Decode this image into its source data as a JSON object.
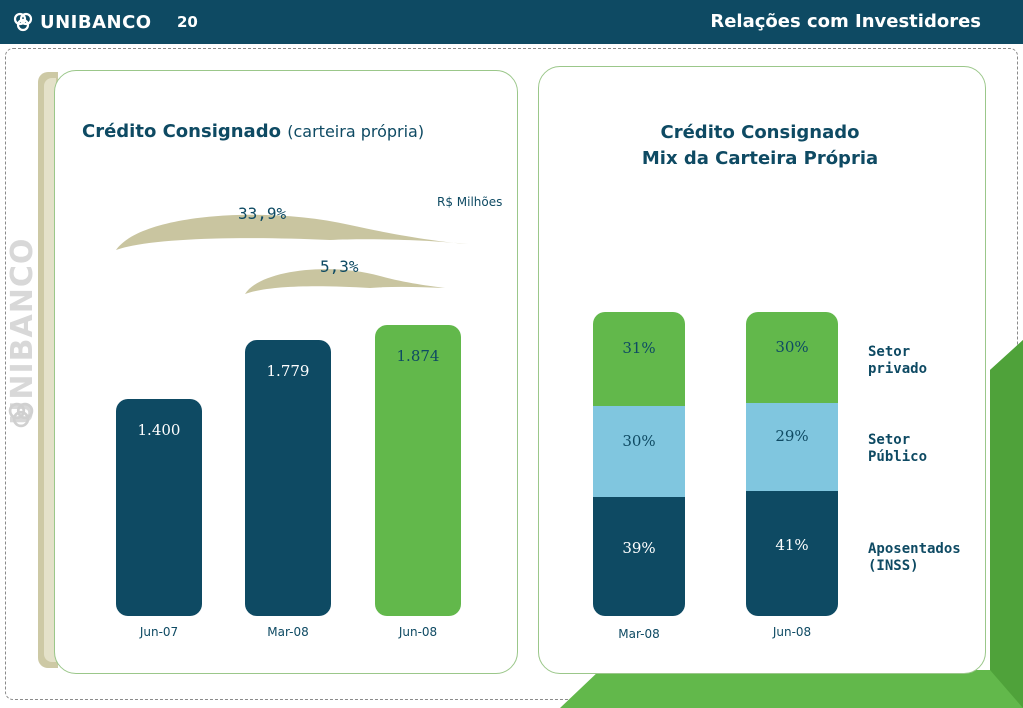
{
  "header": {
    "brand": "UNIBANCO",
    "page_number": "20",
    "title": "Relações com Investidores"
  },
  "watermark": {
    "text": "UNIBANCO"
  },
  "left_panel": {
    "title": "Crédito Consignado",
    "subtitle": "(carteira própria)",
    "units": "R$ Milhões",
    "growth": [
      {
        "label": "33,9%",
        "from": "Jun-07",
        "to": "Jun-08"
      },
      {
        "label": "5,3%",
        "from": "Mar-08",
        "to": "Jun-08"
      }
    ]
  },
  "right_panel": {
    "title_line1": "Crédito Consignado",
    "title_line2": "Mix da Carteira Própria"
  },
  "colors": {
    "navy": "#0e4a63",
    "green": "#62b84b",
    "light_blue": "#80c6df",
    "arrow_fill": "#c9c5a0"
  },
  "chart_data": [
    {
      "type": "bar",
      "title": "Crédito Consignado",
      "subtitle": "(carteira própria)",
      "ylabel": "R$ Milhões",
      "categories": [
        "Jun-07",
        "Mar-08",
        "Jun-08"
      ],
      "values": [
        1400,
        1779,
        1874
      ],
      "value_labels": [
        "1.400",
        "1.779",
        "1.874"
      ],
      "bar_colors": [
        "#0e4a63",
        "#0e4a63",
        "#62b84b"
      ],
      "ylim": [
        0,
        2100
      ],
      "grid": false
    },
    {
      "type": "bar",
      "stacked": true,
      "percent": true,
      "title": "Crédito Consignado Mix da Carteira Própria",
      "categories": [
        "Mar-08",
        "Jun-08"
      ],
      "series": [
        {
          "name": "Aposentados\n(INSS)",
          "values": [
            39,
            41
          ],
          "labels": [
            "39%",
            "41%"
          ],
          "color": "#0e4a63",
          "text_color": "#ffffff"
        },
        {
          "name": "Setor\nPúblico",
          "values": [
            30,
            29
          ],
          "labels": [
            "30%",
            "29%"
          ],
          "color": "#80c6df",
          "text_color": "#0e4a63"
        },
        {
          "name": "Setor\nprivado",
          "values": [
            31,
            30
          ],
          "labels": [
            "31%",
            "30%"
          ],
          "color": "#62b84b",
          "text_color": "#0e4a63"
        }
      ],
      "legend_position": "right",
      "grid": false
    }
  ]
}
